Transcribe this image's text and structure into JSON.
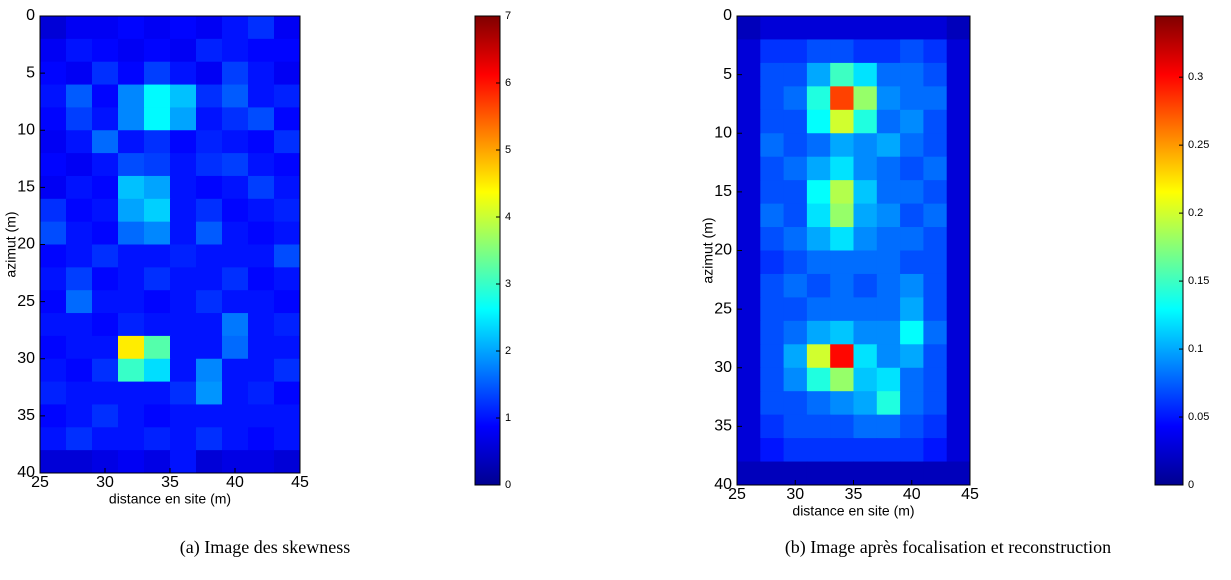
{
  "chart_data": [
    {
      "type": "heatmap",
      "xlabel": "distance en site (m)",
      "ylabel": "azimut (m)",
      "caption": "(a) Image des skewness",
      "xlim": [
        25,
        45
      ],
      "ylim": [
        0,
        40
      ],
      "xticks": [
        25,
        30,
        35,
        40,
        45
      ],
      "yticks": [
        0,
        5,
        10,
        15,
        20,
        25,
        30,
        35,
        40
      ],
      "clim": [
        0,
        7
      ],
      "cticks": [
        0,
        1,
        2,
        3,
        4,
        5,
        6,
        7
      ],
      "colormap": "jet",
      "values": [
        [
          0.6,
          0.8,
          0.8,
          0.9,
          0.8,
          0.9,
          0.8,
          1.0,
          1.2,
          0.8
        ],
        [
          0.8,
          1.0,
          0.9,
          0.8,
          0.9,
          0.8,
          1.1,
          1.0,
          0.9,
          0.9
        ],
        [
          0.9,
          0.8,
          1.2,
          0.9,
          1.3,
          1.0,
          0.8,
          1.3,
          1.0,
          0.8
        ],
        [
          1.0,
          1.5,
          0.9,
          1.8,
          2.6,
          2.2,
          1.2,
          1.5,
          1.0,
          1.1
        ],
        [
          0.9,
          1.3,
          1.0,
          1.8,
          2.6,
          2.0,
          1.0,
          1.2,
          1.4,
          0.9
        ],
        [
          0.8,
          1.0,
          1.6,
          1.0,
          1.2,
          0.9,
          1.1,
          1.0,
          0.9,
          1.2
        ],
        [
          0.9,
          0.8,
          1.0,
          1.4,
          1.3,
          1.0,
          1.2,
          1.3,
          1.0,
          0.9
        ],
        [
          0.8,
          1.0,
          0.9,
          2.2,
          2.0,
          1.0,
          0.9,
          1.0,
          1.3,
          1.0
        ],
        [
          1.2,
          0.9,
          1.0,
          2.0,
          2.3,
          1.0,
          1.2,
          0.9,
          1.0,
          1.1
        ],
        [
          1.4,
          1.0,
          0.9,
          1.6,
          1.8,
          1.0,
          1.5,
          1.0,
          0.9,
          1.0
        ],
        [
          0.9,
          1.0,
          1.2,
          1.0,
          1.0,
          1.1,
          1.0,
          1.0,
          1.0,
          1.4
        ],
        [
          1.0,
          1.3,
          0.9,
          1.0,
          1.2,
          1.0,
          1.0,
          1.2,
          0.9,
          1.0
        ],
        [
          0.9,
          1.6,
          1.0,
          1.0,
          0.9,
          1.0,
          1.2,
          1.0,
          1.0,
          0.9
        ],
        [
          1.0,
          1.0,
          0.9,
          1.1,
          1.0,
          1.0,
          1.0,
          1.7,
          1.0,
          1.1
        ],
        [
          0.9,
          1.0,
          1.0,
          4.5,
          3.2,
          1.0,
          1.0,
          1.6,
          1.0,
          1.0
        ],
        [
          1.0,
          0.9,
          1.2,
          3.0,
          2.4,
          1.0,
          1.8,
          1.0,
          1.0,
          1.2
        ],
        [
          1.1,
          1.0,
          1.0,
          1.0,
          1.0,
          1.2,
          1.9,
          1.0,
          1.1,
          0.9
        ],
        [
          0.9,
          1.0,
          1.2,
          1.0,
          0.9,
          1.0,
          1.0,
          1.0,
          1.0,
          1.0
        ],
        [
          1.0,
          1.2,
          1.0,
          1.0,
          1.1,
          1.0,
          1.2,
          1.0,
          0.9,
          1.0
        ],
        [
          0.6,
          0.6,
          0.7,
          0.8,
          0.7,
          1.0,
          0.6,
          0.7,
          0.7,
          0.6
        ]
      ]
    },
    {
      "type": "heatmap",
      "xlabel": "distance en site (m)",
      "ylabel": "azimut (m)",
      "caption": "(b) Image après focalisation et reconstruction",
      "xlim": [
        25,
        45
      ],
      "ylim": [
        0,
        40
      ],
      "xticks": [
        25,
        30,
        35,
        40,
        45
      ],
      "yticks": [
        0,
        5,
        10,
        15,
        20,
        25,
        30,
        35,
        40
      ],
      "clim": [
        0,
        0.345
      ],
      "cticks": [
        0,
        0.05,
        0.1,
        0.15,
        0.2,
        0.25,
        0.3
      ],
      "colormap": "jet",
      "values": [
        [
          0.02,
          0.03,
          0.03,
          0.03,
          0.03,
          0.03,
          0.03,
          0.03,
          0.03,
          0.02
        ],
        [
          0.03,
          0.06,
          0.06,
          0.07,
          0.07,
          0.06,
          0.06,
          0.07,
          0.06,
          0.03
        ],
        [
          0.03,
          0.07,
          0.07,
          0.1,
          0.15,
          0.12,
          0.08,
          0.08,
          0.07,
          0.03
        ],
        [
          0.03,
          0.07,
          0.08,
          0.14,
          0.28,
          0.18,
          0.09,
          0.08,
          0.08,
          0.03
        ],
        [
          0.03,
          0.07,
          0.07,
          0.13,
          0.2,
          0.14,
          0.08,
          0.09,
          0.07,
          0.03
        ],
        [
          0.03,
          0.08,
          0.07,
          0.08,
          0.1,
          0.09,
          0.1,
          0.08,
          0.07,
          0.03
        ],
        [
          0.03,
          0.07,
          0.08,
          0.1,
          0.12,
          0.09,
          0.08,
          0.07,
          0.08,
          0.03
        ],
        [
          0.03,
          0.07,
          0.07,
          0.13,
          0.19,
          0.11,
          0.08,
          0.08,
          0.07,
          0.03
        ],
        [
          0.03,
          0.08,
          0.07,
          0.12,
          0.18,
          0.1,
          0.09,
          0.07,
          0.08,
          0.03
        ],
        [
          0.03,
          0.07,
          0.08,
          0.1,
          0.12,
          0.09,
          0.08,
          0.08,
          0.07,
          0.03
        ],
        [
          0.03,
          0.06,
          0.07,
          0.08,
          0.08,
          0.08,
          0.08,
          0.07,
          0.07,
          0.03
        ],
        [
          0.03,
          0.07,
          0.08,
          0.07,
          0.08,
          0.07,
          0.08,
          0.09,
          0.07,
          0.03
        ],
        [
          0.03,
          0.07,
          0.07,
          0.08,
          0.08,
          0.08,
          0.08,
          0.1,
          0.07,
          0.03
        ],
        [
          0.03,
          0.07,
          0.08,
          0.1,
          0.11,
          0.09,
          0.09,
          0.13,
          0.08,
          0.03
        ],
        [
          0.03,
          0.07,
          0.1,
          0.2,
          0.3,
          0.12,
          0.09,
          0.1,
          0.07,
          0.03
        ],
        [
          0.03,
          0.07,
          0.09,
          0.14,
          0.18,
          0.11,
          0.12,
          0.08,
          0.07,
          0.03
        ],
        [
          0.03,
          0.07,
          0.07,
          0.08,
          0.09,
          0.1,
          0.14,
          0.08,
          0.07,
          0.03
        ],
        [
          0.03,
          0.06,
          0.07,
          0.07,
          0.07,
          0.08,
          0.08,
          0.07,
          0.06,
          0.03
        ],
        [
          0.03,
          0.05,
          0.06,
          0.06,
          0.06,
          0.06,
          0.06,
          0.06,
          0.05,
          0.03
        ],
        [
          0.02,
          0.02,
          0.02,
          0.02,
          0.02,
          0.02,
          0.02,
          0.02,
          0.02,
          0.02
        ]
      ]
    }
  ]
}
